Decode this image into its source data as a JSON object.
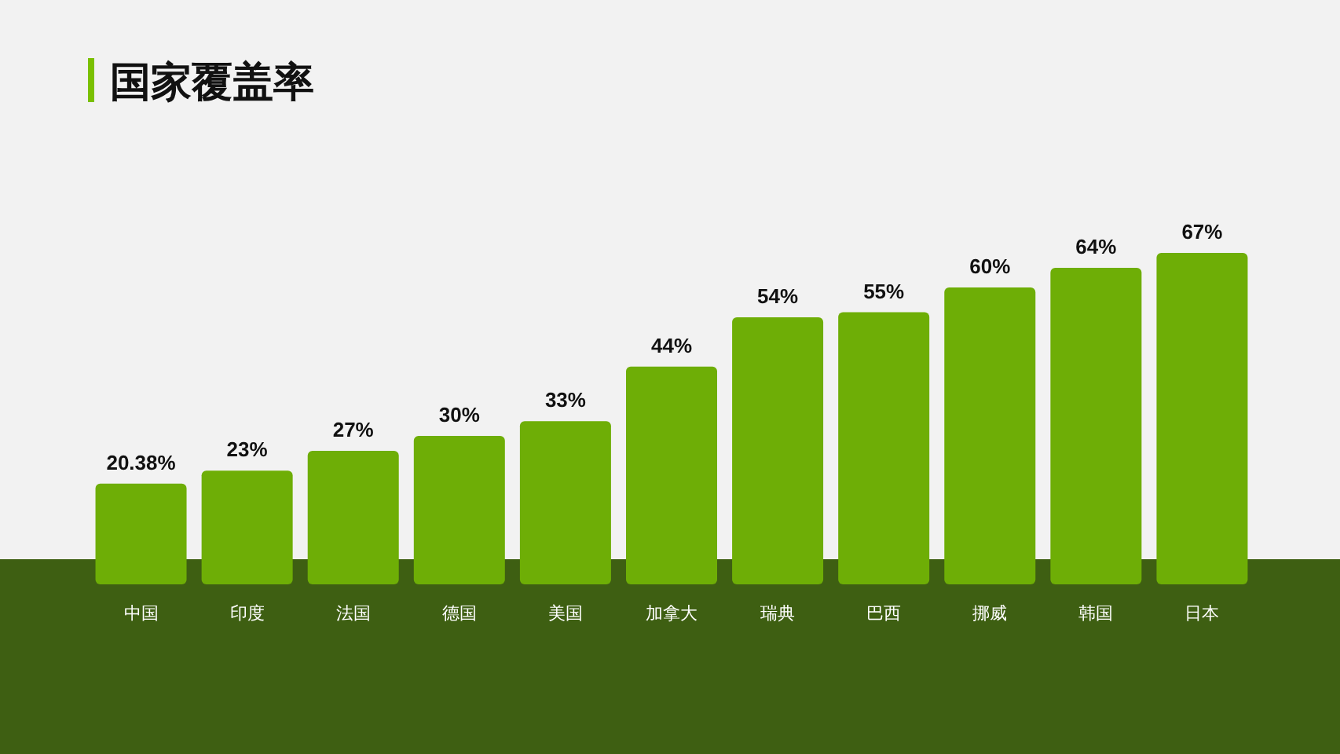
{
  "chart_data": {
    "type": "bar",
    "title": "国家覆盖率",
    "categories": [
      "中国",
      "印度",
      "法国",
      "德国",
      "美国",
      "加拿大",
      "瑞典",
      "巴西",
      "挪威",
      "韩国",
      "日本"
    ],
    "values": [
      20.38,
      23,
      27,
      30,
      33,
      44,
      54,
      55,
      60,
      64,
      67
    ],
    "value_labels": [
      "20.38%",
      "23%",
      "27%",
      "30%",
      "33%",
      "44%",
      "54%",
      "55%",
      "60%",
      "64%",
      "67%"
    ],
    "color": "#6eae06"
  }
}
